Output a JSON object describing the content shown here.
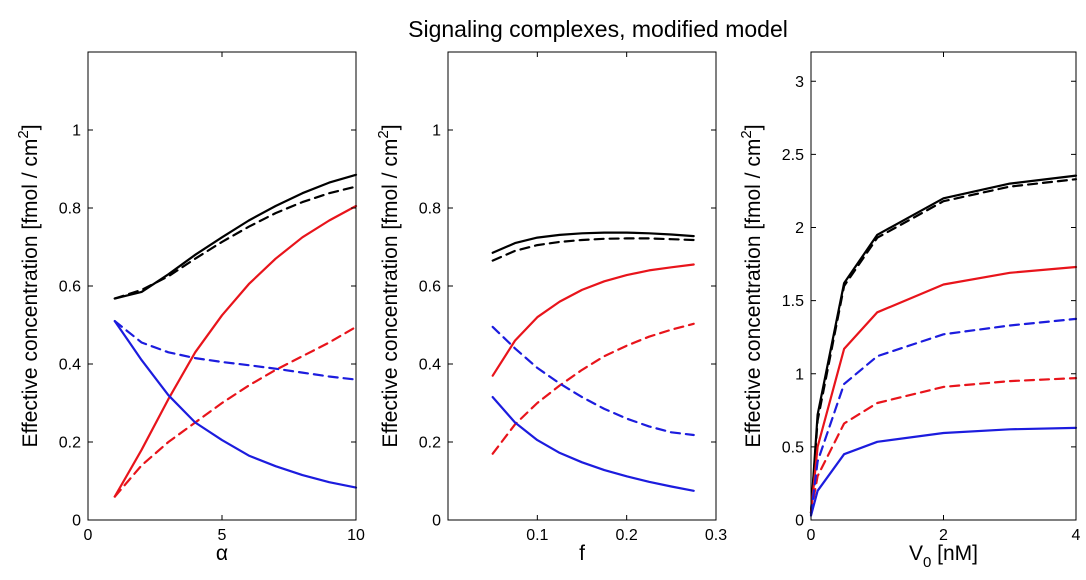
{
  "figure": {
    "title": "Signaling complexes, modified model"
  },
  "colors": {
    "black": "#000000",
    "red": "#e8141b",
    "blue": "#1c1cde"
  },
  "chart_data": [
    {
      "type": "line",
      "xlabel": "α",
      "ylabel": "Effective concentration [fmol / cm",
      "ylabel_sup": "2",
      "ylabel_end": "]",
      "xlim": [
        0,
        10
      ],
      "ylim": [
        0,
        1.2
      ],
      "xticks": [
        0,
        5,
        10
      ],
      "xtick_labels": [
        "0",
        "5",
        "10"
      ],
      "yticks": [
        0,
        0.2,
        0.4,
        0.6,
        0.8,
        1
      ],
      "ytick_labels": [
        "0",
        "0.2",
        "0.4",
        "0.6",
        "0.8",
        "1"
      ],
      "x": [
        1,
        2,
        3,
        4,
        5,
        6,
        7,
        8,
        9,
        10
      ],
      "series": [
        {
          "color": "black",
          "dash": false,
          "values": [
            0.568,
            0.585,
            0.63,
            0.68,
            0.725,
            0.768,
            0.805,
            0.838,
            0.865,
            0.885
          ]
        },
        {
          "color": "black",
          "dash": true,
          "values": [
            0.568,
            0.59,
            0.625,
            0.67,
            0.713,
            0.752,
            0.787,
            0.815,
            0.838,
            0.855
          ]
        },
        {
          "color": "red",
          "dash": false,
          "values": [
            0.06,
            0.18,
            0.31,
            0.43,
            0.525,
            0.605,
            0.67,
            0.725,
            0.768,
            0.805
          ]
        },
        {
          "color": "red",
          "dash": true,
          "values": [
            0.06,
            0.14,
            0.2,
            0.25,
            0.3,
            0.345,
            0.385,
            0.42,
            0.455,
            0.495
          ]
        },
        {
          "color": "blue",
          "dash": false,
          "values": [
            0.51,
            0.41,
            0.32,
            0.25,
            0.205,
            0.165,
            0.138,
            0.115,
            0.097,
            0.083
          ]
        },
        {
          "color": "blue",
          "dash": true,
          "values": [
            0.51,
            0.455,
            0.43,
            0.415,
            0.405,
            0.397,
            0.388,
            0.378,
            0.368,
            0.36
          ]
        }
      ]
    },
    {
      "type": "line",
      "xlabel": "f",
      "ylabel": "Effective concentration [fmol / cm",
      "ylabel_sup": "2",
      "ylabel_end": "]",
      "xlim": [
        0,
        0.3
      ],
      "ylim": [
        0,
        1.2
      ],
      "xticks": [
        0.1,
        0.2,
        0.3
      ],
      "xtick_labels": [
        "0.1",
        "0.2",
        "0.3"
      ],
      "yticks": [
        0,
        0.2,
        0.4,
        0.6,
        0.8,
        1
      ],
      "ytick_labels": [
        "0",
        "0.2",
        "0.4",
        "0.6",
        "0.8",
        "1"
      ],
      "x": [
        0.05,
        0.075,
        0.1,
        0.125,
        0.15,
        0.175,
        0.2,
        0.225,
        0.25,
        0.275
      ],
      "series": [
        {
          "color": "black",
          "dash": false,
          "values": [
            0.685,
            0.71,
            0.724,
            0.731,
            0.735,
            0.737,
            0.737,
            0.735,
            0.732,
            0.728
          ]
        },
        {
          "color": "black",
          "dash": true,
          "values": [
            0.665,
            0.69,
            0.705,
            0.713,
            0.718,
            0.721,
            0.722,
            0.722,
            0.72,
            0.718
          ]
        },
        {
          "color": "red",
          "dash": false,
          "values": [
            0.37,
            0.46,
            0.52,
            0.56,
            0.59,
            0.612,
            0.628,
            0.64,
            0.648,
            0.655
          ]
        },
        {
          "color": "red",
          "dash": true,
          "values": [
            0.17,
            0.245,
            0.3,
            0.345,
            0.385,
            0.42,
            0.447,
            0.47,
            0.488,
            0.503
          ]
        },
        {
          "color": "blue",
          "dash": false,
          "values": [
            0.315,
            0.25,
            0.205,
            0.172,
            0.148,
            0.128,
            0.112,
            0.098,
            0.086,
            0.075
          ]
        },
        {
          "color": "blue",
          "dash": true,
          "values": [
            0.495,
            0.44,
            0.39,
            0.35,
            0.315,
            0.285,
            0.26,
            0.24,
            0.225,
            0.218
          ]
        }
      ]
    },
    {
      "type": "line",
      "xlabel": "V",
      "xlabel_sub": "0",
      "xlabel_end": " [nM]",
      "ylabel": "Effective concentration [fmol / cm",
      "ylabel_sup": "2",
      "ylabel_end": "]",
      "xlim": [
        0,
        4
      ],
      "ylim": [
        0,
        3.2
      ],
      "xticks": [
        0,
        2,
        4
      ],
      "xtick_labels": [
        "0",
        "2",
        "4"
      ],
      "yticks": [
        0,
        0.5,
        1,
        1.5,
        2,
        2.5,
        3
      ],
      "ytick_labels": [
        "0",
        "0.5",
        "1",
        "1.5",
        "2",
        "2.5",
        "3"
      ],
      "x": [
        0,
        0.1,
        0.5,
        1,
        2,
        3,
        4
      ],
      "series": [
        {
          "color": "black",
          "dash": false,
          "values": [
            0.05,
            0.72,
            1.62,
            1.95,
            2.2,
            2.3,
            2.355
          ]
        },
        {
          "color": "black",
          "dash": true,
          "values": [
            0.05,
            0.68,
            1.6,
            1.93,
            2.18,
            2.28,
            2.33
          ]
        },
        {
          "color": "red",
          "dash": false,
          "values": [
            0.05,
            0.5,
            1.17,
            1.42,
            1.61,
            1.69,
            1.73
          ]
        },
        {
          "color": "red",
          "dash": true,
          "values": [
            0.05,
            0.3,
            0.66,
            0.8,
            0.91,
            0.95,
            0.97
          ]
        },
        {
          "color": "blue",
          "dash": false,
          "values": [
            0.03,
            0.2,
            0.45,
            0.535,
            0.595,
            0.62,
            0.63
          ]
        },
        {
          "color": "blue",
          "dash": true,
          "values": [
            0.04,
            0.4,
            0.93,
            1.12,
            1.27,
            1.33,
            1.375
          ]
        }
      ]
    }
  ]
}
